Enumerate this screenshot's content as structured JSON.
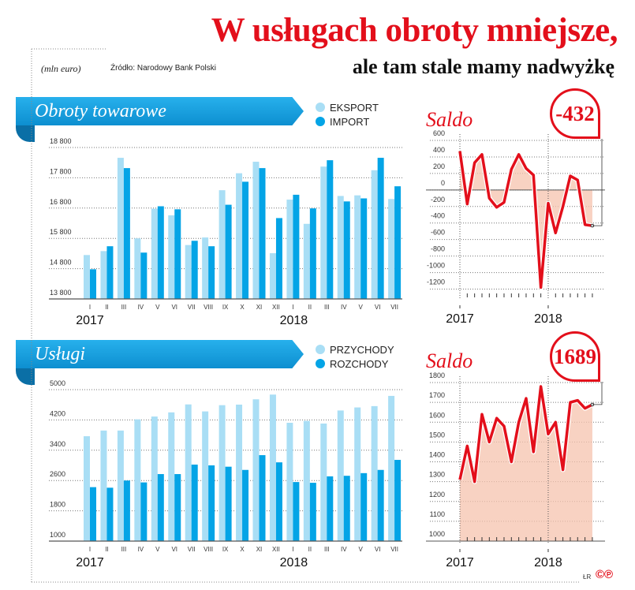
{
  "header": {
    "title_line1": "W usługach obroty mniejsze,",
    "title_line2": "ale tam stale mamy nadwyżkę",
    "unit": "(mln euro)",
    "source": "Źródło: Narodowy Bank Polski",
    "credit": "ŁR",
    "copyright": "©℗"
  },
  "colors": {
    "light": "#a9def5",
    "dark": "#04a4e6",
    "red": "#e30f1b",
    "fill": "#f6c3ad"
  },
  "chart_data": [
    {
      "id": "goods",
      "type": "bar",
      "title": "Obroty towarowe",
      "categories": [
        "I",
        "II",
        "III",
        "IV",
        "V",
        "VI",
        "VII",
        "VIII",
        "IX",
        "X",
        "XI",
        "XII",
        "I",
        "II",
        "III",
        "IV",
        "V",
        "VI",
        "VII"
      ],
      "years": [
        "2017",
        "2018"
      ],
      "yticks": [
        "18 800",
        "17 800",
        "16 800",
        "15 800",
        "14 800",
        "13 800"
      ],
      "ytick_values": [
        18800,
        17800,
        16800,
        15800,
        14800,
        13800
      ],
      "ylim": [
        13800,
        18800
      ],
      "series": [
        {
          "name": "EKSPORT",
          "values": [
            15250,
            15380,
            18460,
            15800,
            16780,
            16560,
            15580,
            15830,
            17390,
            17950,
            18330,
            15310,
            17080,
            16280,
            18170,
            17200,
            17220,
            18050,
            17100
          ]
        },
        {
          "name": "IMPORT",
          "values": [
            14780,
            15540,
            18120,
            15330,
            16860,
            16760,
            15720,
            15540,
            16910,
            17670,
            18120,
            16470,
            17240,
            16790,
            18380,
            17020,
            17120,
            18460,
            17520
          ]
        }
      ]
    },
    {
      "id": "goods_saldo",
      "type": "line",
      "title": "Saldo",
      "highlight": "-432",
      "years": [
        "2017",
        "2018"
      ],
      "yticks": [
        "600",
        "400",
        "200",
        "0",
        "-200",
        "-400",
        "-600",
        "-800",
        "-1000",
        "-1200"
      ],
      "ytick_values": [
        600,
        400,
        200,
        0,
        -200,
        -400,
        -600,
        -800,
        -1000,
        -1200
      ],
      "ylim": [
        -1300,
        600
      ],
      "values": [
        470,
        -170,
        330,
        430,
        -100,
        -210,
        -150,
        250,
        430,
        260,
        180,
        -1180,
        -160,
        -520,
        -200,
        170,
        120,
        -420,
        -432
      ]
    },
    {
      "id": "services",
      "type": "bar",
      "title": "Usługi",
      "categories": [
        "I",
        "II",
        "III",
        "IV",
        "V",
        "VI",
        "VII",
        "VIII",
        "IX",
        "X",
        "XI",
        "XII",
        "I",
        "II",
        "III",
        "IV",
        "V",
        "VI",
        "VII"
      ],
      "years": [
        "2017",
        "2018"
      ],
      "yticks": [
        "5000",
        "4200",
        "3400",
        "2600",
        "1800",
        "1000"
      ],
      "ytick_values": [
        5000,
        4200,
        3400,
        2600,
        1800,
        1000
      ],
      "ylim": [
        1000,
        5000
      ],
      "series": [
        {
          "name": "PRZYCHODY",
          "values": [
            3770,
            3920,
            3920,
            4215,
            4290,
            4400,
            4610,
            4425,
            4590,
            4605,
            4745,
            4870,
            4125,
            4175,
            4105,
            4450,
            4530,
            4565,
            4835
          ]
        },
        {
          "name": "ROZCHODY",
          "values": [
            2425,
            2410,
            2600,
            2550,
            2770,
            2770,
            3020,
            3000,
            2965,
            2880,
            3270,
            3080,
            2560,
            2540,
            2710,
            2725,
            2795,
            2880,
            3145
          ]
        }
      ]
    },
    {
      "id": "services_saldo",
      "type": "line",
      "title": "Saldo",
      "highlight": "1689",
      "years": [
        "2017",
        "2018"
      ],
      "yticks": [
        "1800",
        "1700",
        "1600",
        "1500",
        "1400",
        "1300",
        "1200",
        "1100",
        "1000"
      ],
      "ytick_values": [
        1800,
        1700,
        1600,
        1500,
        1400,
        1300,
        1200,
        1100,
        1000
      ],
      "ylim": [
        1000,
        1800
      ],
      "values": [
        1310,
        1480,
        1300,
        1640,
        1500,
        1620,
        1580,
        1400,
        1600,
        1720,
        1450,
        1780,
        1540,
        1600,
        1360,
        1700,
        1710,
        1670,
        1689
      ]
    }
  ]
}
